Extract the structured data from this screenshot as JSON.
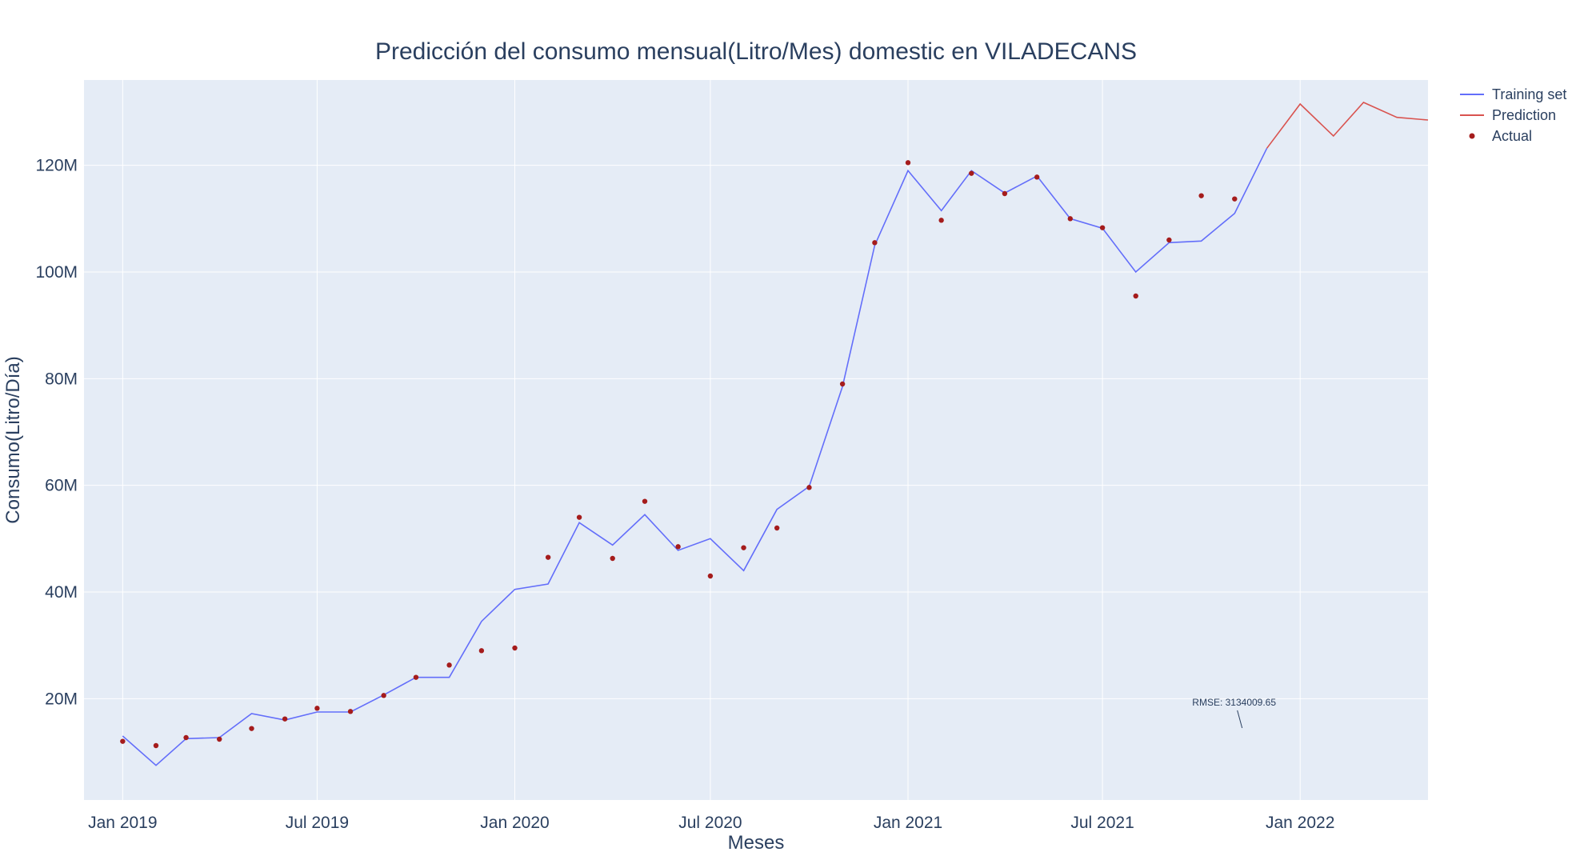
{
  "chart_data": {
    "type": "line",
    "title": "Predicción del consumo mensual(Litro/Mes) domestic en VILADECANS",
    "xlabel": "Meses",
    "ylabel": "Consumo(Litro/Día)",
    "xlim": [
      "2018-11-26",
      "2022-04-30"
    ],
    "ylim": [
      1000000,
      136000000
    ],
    "x_ticks": [
      "2019-01-01",
      "2019-07-01",
      "2020-01-01",
      "2020-07-01",
      "2021-01-01",
      "2021-07-01",
      "2022-01-01"
    ],
    "x_tick_labels": [
      "Jan 2019",
      "Jul 2019",
      "Jan 2020",
      "Jul 2020",
      "Jan 2021",
      "Jul 2021",
      "Jan 2022"
    ],
    "y_ticks": [
      20000000,
      40000000,
      60000000,
      80000000,
      100000000,
      120000000
    ],
    "y_tick_labels": [
      "20M",
      "40M",
      "60M",
      "80M",
      "100M",
      "120M"
    ],
    "grid": true,
    "legend_position": "top-right",
    "series": [
      {
        "name": "Training set",
        "mode": "line",
        "color": "#636efa",
        "x": [
          "2019-01-01",
          "2019-02-01",
          "2019-03-01",
          "2019-04-01",
          "2019-05-01",
          "2019-06-01",
          "2019-07-01",
          "2019-08-01",
          "2019-09-01",
          "2019-10-01",
          "2019-11-01",
          "2019-12-01",
          "2020-01-01",
          "2020-02-01",
          "2020-03-01",
          "2020-04-01",
          "2020-05-01",
          "2020-06-01",
          "2020-07-01",
          "2020-08-01",
          "2020-09-01",
          "2020-10-01",
          "2020-11-01",
          "2020-12-01",
          "2021-01-01",
          "2021-02-01",
          "2021-03-01",
          "2021-04-01",
          "2021-05-01",
          "2021-06-01",
          "2021-07-01",
          "2021-08-01",
          "2021-09-01",
          "2021-10-01",
          "2021-11-01",
          "2021-12-01"
        ],
        "y": [
          13000000,
          7500000,
          12500000,
          12700000,
          17200000,
          16000000,
          17500000,
          17500000,
          20700000,
          24000000,
          24000000,
          34500000,
          40500000,
          41500000,
          53000000,
          48800000,
          54500000,
          47800000,
          50000000,
          44000000,
          55500000,
          59800000,
          78500000,
          105000000,
          119000000,
          111500000,
          119000000,
          114800000,
          118000000,
          110000000,
          108200000,
          100000000,
          105500000,
          105800000,
          111000000,
          123200000
        ]
      },
      {
        "name": "Prediction",
        "mode": "line",
        "color": "#d9534f",
        "x": [
          "2021-12-01",
          "2022-01-01",
          "2022-02-01",
          "2022-03-01",
          "2022-04-01",
          "2022-04-30"
        ],
        "y": [
          123200000,
          131500000,
          125500000,
          131800000,
          129000000,
          128500000
        ]
      },
      {
        "name": "Actual",
        "mode": "markers",
        "color": "#a51c1c",
        "x": [
          "2019-01-01",
          "2019-02-01",
          "2019-03-01",
          "2019-04-01",
          "2019-05-01",
          "2019-06-01",
          "2019-07-01",
          "2019-08-01",
          "2019-09-01",
          "2019-10-01",
          "2019-11-01",
          "2019-12-01",
          "2020-01-01",
          "2020-02-01",
          "2020-03-01",
          "2020-04-01",
          "2020-05-01",
          "2020-06-01",
          "2020-07-01",
          "2020-08-01",
          "2020-09-01",
          "2020-10-01",
          "2020-11-01",
          "2020-12-01",
          "2021-01-01",
          "2021-02-01",
          "2021-03-01",
          "2021-04-01",
          "2021-05-01",
          "2021-06-01",
          "2021-07-01",
          "2021-08-01",
          "2021-09-01",
          "2021-10-01",
          "2021-11-01"
        ],
        "y": [
          12000000,
          11200000,
          12700000,
          12400000,
          14400000,
          16200000,
          18200000,
          17600000,
          20600000,
          24000000,
          26300000,
          29000000,
          29500000,
          46500000,
          54000000,
          46300000,
          57000000,
          48500000,
          43000000,
          48300000,
          52000000,
          59600000,
          79000000,
          105500000,
          120500000,
          109700000,
          118500000,
          114700000,
          117800000,
          110000000,
          108300000,
          95500000,
          106000000,
          114300000,
          113700000
        ]
      }
    ],
    "annotations": [
      {
        "text": "RMSE: 3134009.65",
        "x": "2021-11-08",
        "y": 14500000
      }
    ]
  },
  "colors": {
    "plot_background": "#e5ecf6",
    "grid": "#ffffff",
    "text": "#2a3f5f"
  }
}
